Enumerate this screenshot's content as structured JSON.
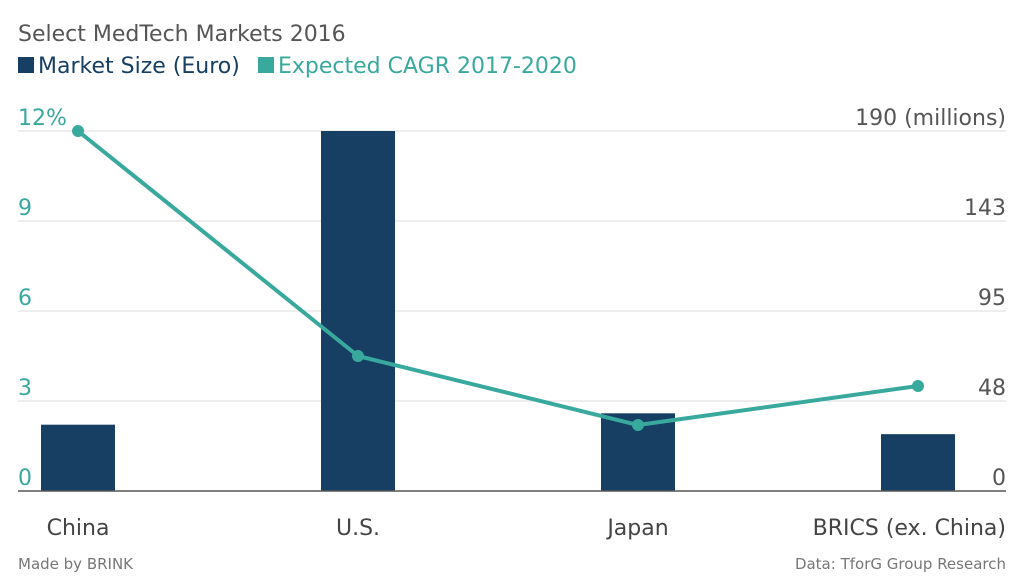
{
  "header": {
    "title": "Select MedTech Markets 2016"
  },
  "legend": {
    "bar_label": "Market Size (Euro)",
    "line_label": "Expected CAGR 2017-2020"
  },
  "axes": {
    "left_ticks": [
      "0",
      "3",
      "6",
      "9",
      "12%"
    ],
    "right_ticks": [
      "0",
      "48",
      "95",
      "143",
      "190 (millions)"
    ]
  },
  "footer": {
    "made_by": "Made by BRINK",
    "source": "Data: TforG Group Research"
  },
  "colors": {
    "bar": "#173f63",
    "line": "#39a99e"
  },
  "chart_data": {
    "type": "bar",
    "title": "Select MedTech Markets 2016",
    "categories": [
      "China",
      "U.S.",
      "Japan",
      "BRICS (ex. China)"
    ],
    "series": [
      {
        "name": "Market Size (Euro)",
        "type": "bar",
        "axis": "right",
        "values": [
          35,
          190,
          41,
          30
        ]
      },
      {
        "name": "Expected CAGR 2017-2020",
        "type": "line",
        "axis": "left",
        "values": [
          12,
          4.5,
          2.2,
          3.5
        ]
      }
    ],
    "y_left": {
      "ylim": [
        0,
        12
      ],
      "ticks": [
        0,
        3,
        6,
        9,
        12
      ],
      "unit": "%"
    },
    "y_right": {
      "ylim": [
        0,
        190
      ],
      "ticks": [
        0,
        48,
        95,
        143,
        190
      ],
      "unit": "millions"
    },
    "grid": true,
    "legend_position": "top-left"
  }
}
